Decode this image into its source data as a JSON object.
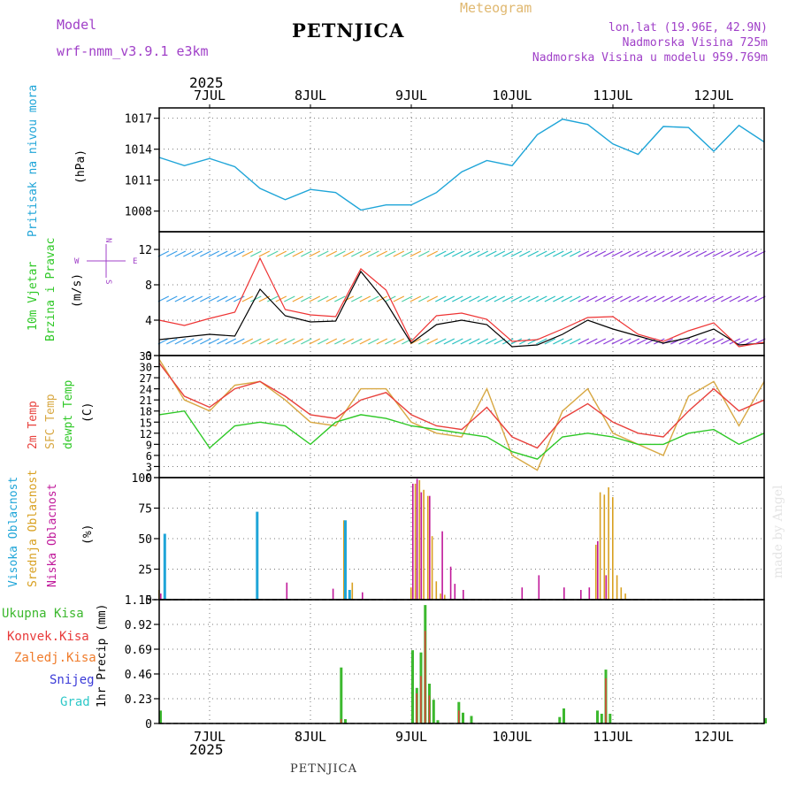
{
  "header": {
    "model_label": "Model",
    "model_name": "wrf-nmm_v3.9.1  e3km",
    "station": "PETNJICA",
    "product": "Meteogram",
    "lonlat": "lon,lat (19.96E, 42.9N)",
    "elevation": "Nadmorska Visina 725m",
    "model_elevation": "Nadmorska Visina u modelu 959.769m",
    "footer_station": "PETNJICA",
    "watermark": "made by Angel"
  },
  "colors": {
    "pressure": "#1fa5d8",
    "temp2m": "#e8413c",
    "sfc": "#d8a843",
    "dew": "#2ec826",
    "wind_speed": "#000000",
    "gust": "#ee3333",
    "cloud_high": "#1fa5d8",
    "cloud_mid": "#d8a020",
    "cloud_low": "#c0189a",
    "precip_total": "#3cb82e",
    "precip_conv": "#e83a3a",
    "precip_frozen": "#f07b2a",
    "snow": "#3a3ad8",
    "hail": "#2ec8c8",
    "header_purple": "#a040c8",
    "header_gold": "#e0b870"
  },
  "time_axis": {
    "year": "2025",
    "days": [
      "7JUL",
      "8JUL",
      "9JUL",
      "10JUL",
      "11JUL",
      "12JUL"
    ],
    "hours_total": 144
  },
  "chart_data": [
    {
      "type": "line",
      "id": "pressure",
      "title": "Pritisak na nivou mora",
      "ylabel": "(hPa)",
      "ylim": [
        1006,
        1018
      ],
      "yticks": [
        "1008",
        "1011",
        "1014",
        "1017"
      ],
      "series": [
        {
          "name": "MSLP",
          "x": [
            0,
            6,
            12,
            18,
            24,
            30,
            36,
            42,
            48,
            54,
            60,
            66,
            72,
            78,
            84,
            90,
            96,
            102,
            108,
            114,
            120,
            126,
            132,
            138,
            144
          ],
          "values": [
            1013.2,
            1012.4,
            1013.1,
            1012.3,
            1010.2,
            1009.1,
            1010.1,
            1009.8,
            1008.1,
            1008.6,
            1008.6,
            1009.8,
            1011.8,
            1012.9,
            1012.4,
            1015.4,
            1016.9,
            1016.4,
            1014.5,
            1013.5,
            1016.2,
            1016.1,
            1013.8,
            1016.3,
            1014.7
          ]
        }
      ]
    },
    {
      "type": "line",
      "id": "wind",
      "title": "10m Vjetar",
      "subtitle": "Brzina i Pravac",
      "ylabel": "(m/s)",
      "ylim": [
        0,
        14
      ],
      "yticks": [
        "0",
        "4",
        "8",
        "12"
      ],
      "compass": [
        "N",
        "S",
        "W",
        "E"
      ],
      "series": [
        {
          "name": "speed",
          "x": [
            0,
            6,
            12,
            18,
            24,
            30,
            36,
            42,
            48,
            54,
            60,
            66,
            72,
            78,
            84,
            90,
            96,
            102,
            108,
            114,
            120,
            126,
            132,
            138,
            144
          ],
          "values": [
            1.8,
            2.1,
            2.4,
            2.2,
            7.5,
            4.5,
            3.8,
            3.9,
            9.5,
            6.0,
            1.4,
            3.5,
            4.0,
            3.5,
            1.0,
            1.2,
            2.4,
            4.0,
            3.0,
            2.2,
            1.4,
            2.0,
            3.0,
            1.2,
            1.4
          ]
        },
        {
          "name": "gust",
          "x": [
            0,
            6,
            12,
            18,
            24,
            30,
            36,
            42,
            48,
            54,
            60,
            66,
            72,
            78,
            84,
            90,
            96,
            102,
            108,
            114,
            120,
            126,
            132,
            138,
            144
          ],
          "values": [
            4.0,
            3.4,
            4.2,
            4.9,
            11.0,
            5.2,
            4.6,
            4.4,
            9.8,
            7.4,
            1.6,
            4.5,
            4.8,
            4.1,
            1.6,
            1.8,
            3.0,
            4.3,
            4.4,
            2.4,
            1.6,
            2.8,
            3.7,
            1.0,
            1.5
          ]
        }
      ]
    },
    {
      "type": "line",
      "id": "temperature",
      "title": "2m Temp",
      "subtitle": "SFC Temp",
      "third": "dewpt Temp",
      "ylabel": "(C)",
      "ylim": [
        0,
        33
      ],
      "yticks": [
        "0",
        "3",
        "6",
        "9",
        "12",
        "15",
        "18",
        "21",
        "24",
        "27",
        "30",
        "33"
      ],
      "series": [
        {
          "name": "2m",
          "x": [
            0,
            6,
            12,
            18,
            24,
            30,
            36,
            42,
            48,
            54,
            60,
            66,
            72,
            78,
            84,
            90,
            96,
            102,
            108,
            114,
            120,
            126,
            132,
            138,
            144
          ],
          "values": [
            31,
            22,
            19,
            24,
            26,
            22,
            17,
            16,
            21,
            23,
            17,
            14,
            13,
            19,
            11,
            8,
            16,
            20,
            15,
            12,
            11,
            18,
            24,
            18,
            21
          ]
        },
        {
          "name": "sfc",
          "x": [
            0,
            6,
            12,
            18,
            24,
            30,
            36,
            42,
            48,
            54,
            60,
            66,
            72,
            78,
            84,
            90,
            96,
            102,
            108,
            114,
            120,
            126,
            132,
            138,
            144
          ],
          "values": [
            32,
            21,
            18,
            25,
            26,
            21,
            15,
            14,
            24,
            24,
            15,
            12,
            11,
            24,
            6,
            2,
            18,
            24,
            12,
            9,
            6,
            22,
            26,
            14,
            26
          ]
        },
        {
          "name": "dew",
          "x": [
            0,
            6,
            12,
            18,
            24,
            30,
            36,
            42,
            48,
            54,
            60,
            66,
            72,
            78,
            84,
            90,
            96,
            102,
            108,
            114,
            120,
            126,
            132,
            138,
            144
          ],
          "values": [
            17,
            18,
            8,
            14,
            15,
            14,
            9,
            15,
            17,
            16,
            14,
            13,
            12,
            11,
            7,
            5,
            11,
            12,
            11,
            9,
            9,
            12,
            13,
            9,
            12
          ]
        }
      ]
    },
    {
      "type": "bar",
      "id": "clouds",
      "title": "Visoka Oblacnost",
      "subtitle": "Srednja Oblacnost",
      "third": "Niska Oblacnost",
      "ylabel": "(%)",
      "ylim": [
        0,
        100
      ],
      "yticks": [
        "0",
        "25",
        "50",
        "75",
        "100"
      ],
      "series": [
        {
          "name": "high",
          "x": [
            1,
            23,
            44,
            45
          ],
          "values": [
            54,
            72,
            65,
            8
          ]
        },
        {
          "name": "mid",
          "x": [
            0,
            44,
            46,
            60,
            61,
            62,
            63,
            64,
            65,
            66,
            67,
            68,
            104,
            105,
            106,
            107,
            108,
            109,
            110,
            111
          ],
          "values": [
            8,
            65,
            14,
            10,
            95,
            98,
            90,
            85,
            52,
            15,
            5,
            4,
            45,
            88,
            86,
            92,
            84,
            20,
            10,
            5
          ]
        },
        {
          "name": "low",
          "x": [
            0,
            30,
            41,
            48,
            60,
            61,
            62,
            64,
            67,
            69,
            70,
            72,
            86,
            90,
            96,
            100,
            102,
            104,
            106
          ],
          "values": [
            5,
            14,
            9,
            6,
            95,
            99,
            88,
            85,
            56,
            27,
            13,
            8,
            10,
            20,
            10,
            8,
            10,
            48,
            20
          ]
        }
      ]
    },
    {
      "type": "bar",
      "id": "precip",
      "title": "Ukupna Kisa",
      "labels": [
        "Ukupna Kisa",
        "Konvek.Kisa",
        "Zaledj.Kisa",
        "Snijeg",
        "Grad"
      ],
      "ylabel": "1hr Precip (mm)",
      "ylim": [
        0,
        1.15
      ],
      "yticks": [
        "0",
        "0.23",
        "0.46",
        "0.69",
        "0.92",
        "1.15"
      ],
      "series": [
        {
          "name": "total",
          "x": [
            0,
            43,
            44,
            60,
            61,
            62,
            63,
            64,
            65,
            66,
            71,
            72,
            74,
            95,
            96,
            104,
            105,
            106,
            107,
            144
          ],
          "values": [
            0.12,
            0.52,
            0.04,
            0.68,
            0.33,
            0.66,
            1.1,
            0.37,
            0.22,
            0.03,
            0.2,
            0.1,
            0.07,
            0.06,
            0.14,
            0.12,
            0.09,
            0.5,
            0.09,
            0.05
          ]
        },
        {
          "name": "conv",
          "x": [
            43,
            61,
            62,
            63,
            64,
            71,
            106
          ],
          "values": [
            0.04,
            0.28,
            0.44,
            0.86,
            0.26,
            0.12,
            0.42
          ]
        }
      ]
    }
  ]
}
